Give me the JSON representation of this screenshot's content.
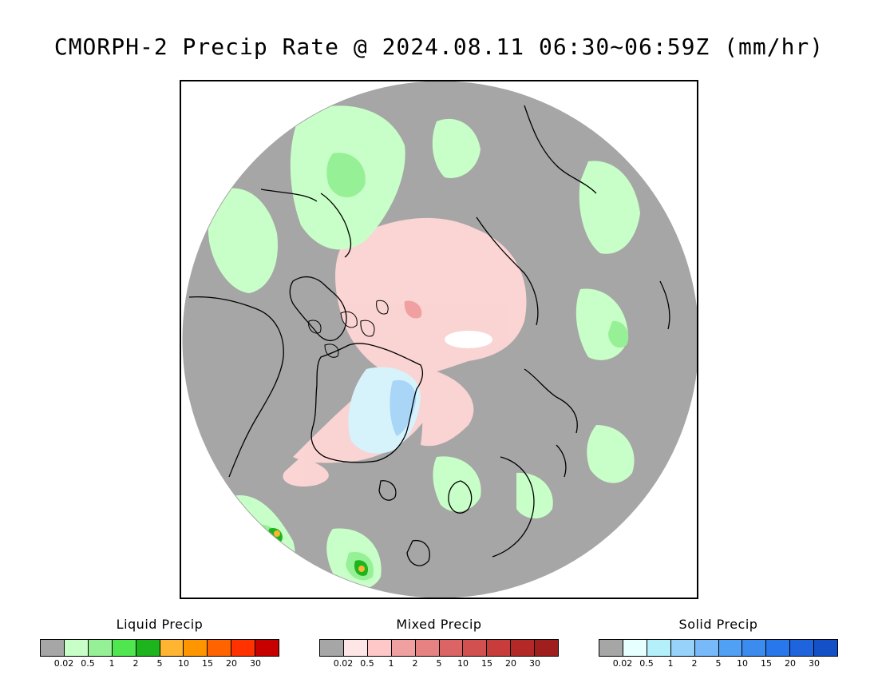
{
  "title": "CMORPH-2 Precip Rate @ 2024.08.11 06:30~06:59Z (mm/hr)",
  "colors": {
    "background_gray": "#a6a6a6",
    "liquid": [
      "#a6a6a6",
      "#c8ffc8",
      "#96f096",
      "#50e650",
      "#1eb41e",
      "#ffb432",
      "#ff9600",
      "#ff6400",
      "#ff3200",
      "#c80000"
    ],
    "mixed": [
      "#a6a6a6",
      "#ffe6e6",
      "#ffc8c8",
      "#f0a0a0",
      "#e68282",
      "#dc6464",
      "#d25050",
      "#c83c3c",
      "#b42828",
      "#a01e1e"
    ],
    "solid": [
      "#a6a6a6",
      "#e6ffff",
      "#b4f0fa",
      "#96d2fa",
      "#78b9fa",
      "#50a0f5",
      "#3c8cf0",
      "#2878eb",
      "#1e64dc",
      "#1450c8"
    ]
  },
  "legends": {
    "liquid": {
      "title": "Liquid Precip",
      "ticks": [
        "0.02",
        "0.5",
        "1",
        "2",
        "5",
        "10",
        "15",
        "20",
        "30"
      ]
    },
    "mixed": {
      "title": "Mixed Precip",
      "ticks": [
        "0.02",
        "0.5",
        "1",
        "2",
        "5",
        "10",
        "15",
        "20",
        "30"
      ]
    },
    "solid": {
      "title": "Solid Precip",
      "ticks": [
        "0.02",
        "0.5",
        "1",
        "2",
        "5",
        "10",
        "15",
        "20",
        "30"
      ]
    }
  }
}
